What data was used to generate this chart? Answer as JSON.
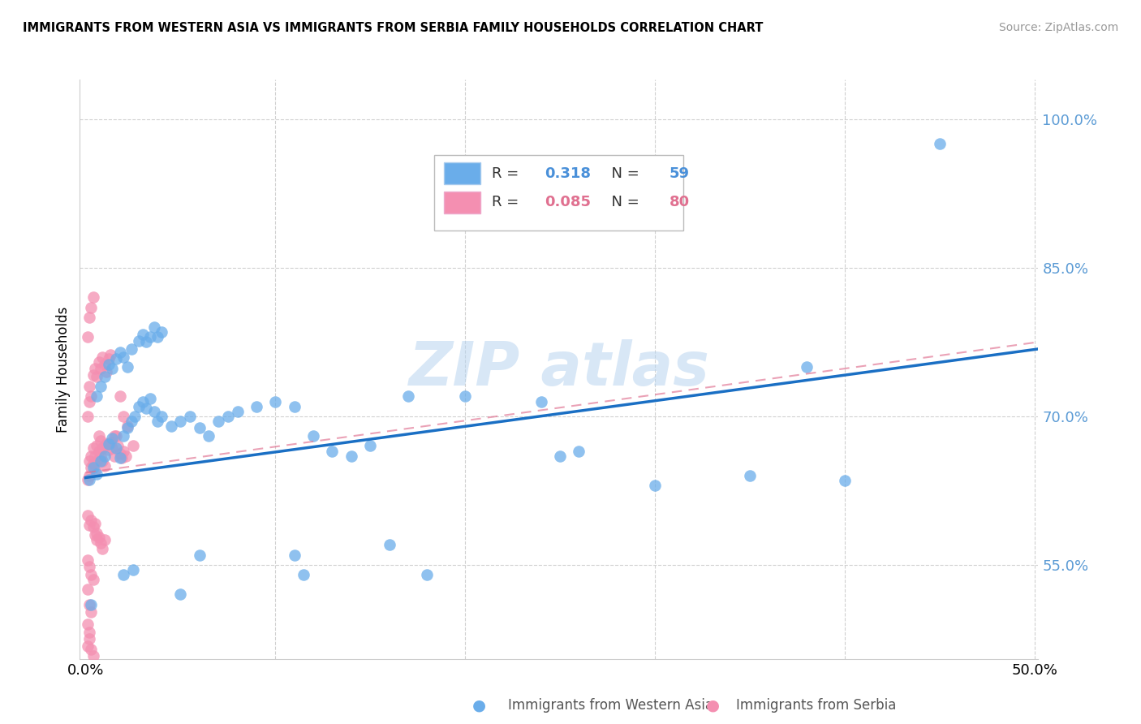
{
  "title": "IMMIGRANTS FROM WESTERN ASIA VS IMMIGRANTS FROM SERBIA FAMILY HOUSEHOLDS CORRELATION CHART",
  "source": "Source: ZipAtlas.com",
  "ylabel": "Family Households",
  "yticks": [
    "100.0%",
    "85.0%",
    "70.0%",
    "55.0%"
  ],
  "ytick_vals": [
    1.0,
    0.85,
    0.7,
    0.55
  ],
  "ymin": 0.455,
  "ymax": 1.04,
  "xmin": -0.003,
  "xmax": 0.502,
  "blue_color": "#6aadea",
  "pink_color": "#f48fb1",
  "line_blue": "#1a6fc4",
  "line_pink": "#e07090",
  "blue_scatter": [
    [
      0.002,
      0.636
    ],
    [
      0.004,
      0.648
    ],
    [
      0.006,
      0.642
    ],
    [
      0.008,
      0.655
    ],
    [
      0.01,
      0.66
    ],
    [
      0.012,
      0.672
    ],
    [
      0.014,
      0.678
    ],
    [
      0.016,
      0.668
    ],
    [
      0.018,
      0.658
    ],
    [
      0.02,
      0.68
    ],
    [
      0.022,
      0.688
    ],
    [
      0.024,
      0.695
    ],
    [
      0.026,
      0.7
    ],
    [
      0.028,
      0.71
    ],
    [
      0.03,
      0.715
    ],
    [
      0.032,
      0.708
    ],
    [
      0.034,
      0.718
    ],
    [
      0.036,
      0.705
    ],
    [
      0.038,
      0.695
    ],
    [
      0.04,
      0.7
    ],
    [
      0.006,
      0.72
    ],
    [
      0.008,
      0.73
    ],
    [
      0.01,
      0.74
    ],
    [
      0.012,
      0.752
    ],
    [
      0.014,
      0.748
    ],
    [
      0.016,
      0.758
    ],
    [
      0.018,
      0.765
    ],
    [
      0.02,
      0.76
    ],
    [
      0.022,
      0.75
    ],
    [
      0.024,
      0.768
    ],
    [
      0.028,
      0.776
    ],
    [
      0.03,
      0.783
    ],
    [
      0.032,
      0.775
    ],
    [
      0.034,
      0.78
    ],
    [
      0.036,
      0.79
    ],
    [
      0.038,
      0.78
    ],
    [
      0.04,
      0.785
    ],
    [
      0.045,
      0.69
    ],
    [
      0.05,
      0.695
    ],
    [
      0.055,
      0.7
    ],
    [
      0.06,
      0.688
    ],
    [
      0.065,
      0.68
    ],
    [
      0.07,
      0.695
    ],
    [
      0.075,
      0.7
    ],
    [
      0.08,
      0.705
    ],
    [
      0.09,
      0.71
    ],
    [
      0.1,
      0.715
    ],
    [
      0.11,
      0.71
    ],
    [
      0.12,
      0.68
    ],
    [
      0.13,
      0.665
    ],
    [
      0.14,
      0.66
    ],
    [
      0.15,
      0.67
    ],
    [
      0.17,
      0.72
    ],
    [
      0.2,
      0.72
    ],
    [
      0.24,
      0.715
    ],
    [
      0.25,
      0.66
    ],
    [
      0.26,
      0.665
    ],
    [
      0.3,
      0.63
    ],
    [
      0.35,
      0.64
    ],
    [
      0.4,
      0.635
    ],
    [
      0.003,
      0.51
    ],
    [
      0.02,
      0.54
    ],
    [
      0.025,
      0.545
    ],
    [
      0.05,
      0.52
    ],
    [
      0.06,
      0.56
    ],
    [
      0.11,
      0.56
    ],
    [
      0.115,
      0.54
    ],
    [
      0.16,
      0.57
    ],
    [
      0.18,
      0.54
    ],
    [
      0.38,
      0.75
    ],
    [
      0.45,
      0.975
    ]
  ],
  "pink_scatter": [
    [
      0.001,
      0.636
    ],
    [
      0.002,
      0.64
    ],
    [
      0.002,
      0.655
    ],
    [
      0.003,
      0.648
    ],
    [
      0.003,
      0.66
    ],
    [
      0.004,
      0.652
    ],
    [
      0.004,
      0.668
    ],
    [
      0.005,
      0.645
    ],
    [
      0.005,
      0.66
    ],
    [
      0.006,
      0.67
    ],
    [
      0.006,
      0.655
    ],
    [
      0.007,
      0.665
    ],
    [
      0.007,
      0.68
    ],
    [
      0.008,
      0.66
    ],
    [
      0.008,
      0.675
    ],
    [
      0.009,
      0.668
    ],
    [
      0.009,
      0.655
    ],
    [
      0.01,
      0.67
    ],
    [
      0.01,
      0.65
    ],
    [
      0.011,
      0.672
    ],
    [
      0.012,
      0.666
    ],
    [
      0.013,
      0.674
    ],
    [
      0.014,
      0.668
    ],
    [
      0.015,
      0.66
    ],
    [
      0.016,
      0.68
    ],
    [
      0.017,
      0.67
    ],
    [
      0.018,
      0.662
    ],
    [
      0.019,
      0.658
    ],
    [
      0.02,
      0.665
    ],
    [
      0.021,
      0.66
    ],
    [
      0.001,
      0.7
    ],
    [
      0.002,
      0.715
    ],
    [
      0.002,
      0.73
    ],
    [
      0.003,
      0.72
    ],
    [
      0.004,
      0.742
    ],
    [
      0.005,
      0.748
    ],
    [
      0.006,
      0.74
    ],
    [
      0.007,
      0.755
    ],
    [
      0.008,
      0.748
    ],
    [
      0.009,
      0.76
    ],
    [
      0.01,
      0.752
    ],
    [
      0.011,
      0.745
    ],
    [
      0.012,
      0.758
    ],
    [
      0.013,
      0.762
    ],
    [
      0.001,
      0.78
    ],
    [
      0.002,
      0.8
    ],
    [
      0.003,
      0.81
    ],
    [
      0.004,
      0.82
    ],
    [
      0.001,
      0.6
    ],
    [
      0.002,
      0.59
    ],
    [
      0.003,
      0.595
    ],
    [
      0.004,
      0.588
    ],
    [
      0.005,
      0.592
    ],
    [
      0.006,
      0.582
    ],
    [
      0.007,
      0.578
    ],
    [
      0.008,
      0.572
    ],
    [
      0.009,
      0.566
    ],
    [
      0.01,
      0.575
    ],
    [
      0.001,
      0.555
    ],
    [
      0.002,
      0.548
    ],
    [
      0.003,
      0.54
    ],
    [
      0.004,
      0.535
    ],
    [
      0.001,
      0.525
    ],
    [
      0.002,
      0.51
    ],
    [
      0.003,
      0.502
    ],
    [
      0.001,
      0.49
    ],
    [
      0.002,
      0.482
    ],
    [
      0.001,
      0.468
    ],
    [
      0.002,
      0.475
    ],
    [
      0.003,
      0.465
    ],
    [
      0.004,
      0.458
    ],
    [
      0.005,
      0.58
    ],
    [
      0.006,
      0.575
    ],
    [
      0.02,
      0.7
    ],
    [
      0.015,
      0.68
    ],
    [
      0.022,
      0.69
    ],
    [
      0.025,
      0.67
    ],
    [
      0.018,
      0.72
    ]
  ],
  "blue_line_x": [
    0.0,
    0.502
  ],
  "blue_line_y": [
    0.638,
    0.768
  ],
  "pink_line_x": [
    0.0,
    0.502
  ],
  "pink_line_y": [
    0.643,
    0.775
  ],
  "legend_blue_r": "0.318",
  "legend_blue_n": "59",
  "legend_pink_r": "0.085",
  "legend_pink_n": "80"
}
